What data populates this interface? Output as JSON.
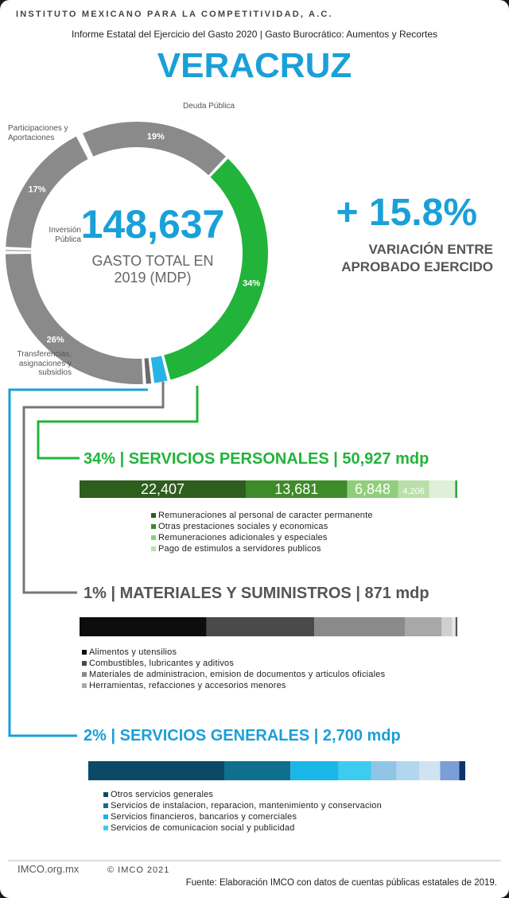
{
  "header": {
    "org": "INSTITUTO MEXICANO PARA LA COMPETITIVIDAD, A.C.",
    "subtitle": "Informe Estatal del Ejercicio del Gasto 2020 | Gasto Burocrático: Aumentos y Recortes",
    "state": "VERACRUZ"
  },
  "summary": {
    "total": "148,637",
    "total_label": "GASTO TOTAL EN 2019 (MDP)",
    "variation": "+ 15.8%",
    "variation_label": "VARIACIÓN ENTRE APROBADO EJERCIDO"
  },
  "chart_data": [
    {
      "type": "pie",
      "categories": [
        "Deuda Pública",
        null,
        null,
        null,
        "Transferencias, asignaciones y subsidios",
        "Inversión Pública",
        "Participaciones y Aportaciones"
      ],
      "values": [
        19,
        34,
        2,
        1,
        26,
        0.5,
        17
      ],
      "value_labels": [
        "19%",
        "34%",
        null,
        null,
        "26%",
        null,
        "17%"
      ],
      "colors": [
        "#8a8a8a",
        "#22b43a",
        "#27b3e6",
        "#6a6a6a",
        "#8a8a8a",
        "#8a8a8a",
        "#8a8a8a"
      ]
    },
    {
      "type": "bar",
      "title": "34% |  SERVICIOS PERSONALES | 50,927 mdp",
      "color": "#22b43a",
      "categories": [
        "Remuneraciones al personal de caracter permanente",
        "Otras prestaciones sociales y economicas",
        "Remuneraciones adicionales y especiales",
        "Pago de estimulos a servidores publicos",
        null,
        null
      ],
      "values": [
        22407,
        13681,
        6848,
        4206,
        3500,
        285
      ],
      "value_labels": [
        "22,407",
        "13,681",
        "6,848",
        "4,206",
        null,
        null
      ],
      "colors": [
        "#2e5e1e",
        "#3f8b2a",
        "#8fce7a",
        "#b8e0a8",
        "#dff0d8",
        "#3aa33a"
      ],
      "xlim": [
        0,
        50927
      ]
    },
    {
      "type": "bar",
      "title": "1% | MATERIALES Y SUMINISTROS | 871 mdp",
      "color": "#555555",
      "categories": [
        "Alimentos y utensilios",
        "Combustibles, lubricantes y aditivos",
        "Materiales de administracion, emision de documentos y articulos oficiales",
        "Herramientas, refacciones y accesorios menores",
        null,
        null,
        null
      ],
      "values": [
        293,
        248,
        209,
        85,
        24,
        8,
        4
      ],
      "value_labels": [
        null,
        null,
        null,
        null,
        null,
        null,
        null
      ],
      "colors": [
        "#0d0d0d",
        "#4a4a4a",
        "#8a8a8a",
        "#a8a8a8",
        "#cfcfcf",
        "#e6e6e6",
        "#555555"
      ],
      "xlim": [
        0,
        871
      ]
    },
    {
      "type": "bar",
      "title": "2% |  SERVICIOS GENERALES | 2,700 mdp",
      "color": "#1a9fd8",
      "categories": [
        "Otros servicios generales",
        "Servicios de instalacion, reparacion, mantenimiento y conservacion",
        "Servicios financieros, bancarios y comerciales",
        "Servicios de comunicacion social y publicidad",
        null,
        null,
        null,
        null,
        null
      ],
      "values": [
        974,
        474,
        344,
        233,
        182,
        165,
        148,
        137,
        43
      ],
      "value_labels": [
        null,
        null,
        null,
        null,
        null,
        null,
        null,
        null,
        null
      ],
      "colors": [
        "#0b4a66",
        "#0f6f8f",
        "#19b6e8",
        "#3dcbf0",
        "#8fc6e6",
        "#b3d6ef",
        "#cfe3f3",
        "#7a9fd6",
        "#13306e"
      ],
      "xlim": [
        0,
        2700
      ]
    }
  ],
  "footer": {
    "logo": "IMCO.org.mx",
    "copyright": "© IMCO 2021",
    "source": "Fuente: Elaboración IMCO con datos de cuentas públicas estatales de 2019."
  }
}
